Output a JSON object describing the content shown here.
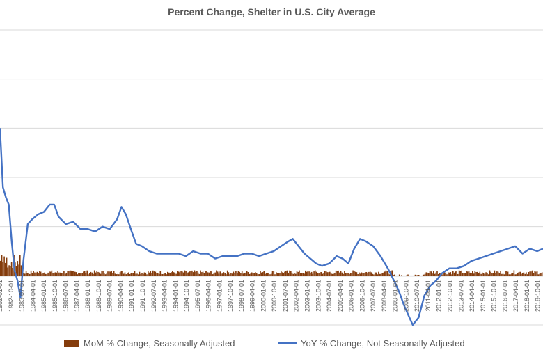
{
  "chart_data": {
    "type": "bar+line",
    "title": "Percent Change,  Shelter in U.S. City Average",
    "xlabel": "",
    "ylabel": "",
    "grid": true,
    "legend_position": "bottom",
    "x_tick_labels": [
      "1982-01-01",
      "1982-10-01",
      "1983-07-01",
      "1984-04-01",
      "1985-01-01",
      "1985-10-01",
      "1986-07-01",
      "1987-04-01",
      "1988-01-01",
      "1988-10-01",
      "1989-07-01",
      "1990-04-01",
      "1991-01-01",
      "1991-10-01",
      "1992-07-01",
      "1993-04-01",
      "1994-01-01",
      "1994-10-01",
      "1995-07-01",
      "1996-04-01",
      "1997-01-01",
      "1997-10-01",
      "1998-07-01",
      "1999-04-01",
      "2000-01-01",
      "2000-10-01",
      "2001-07-01",
      "2002-04-01",
      "2003-01-01",
      "2003-10-01",
      "2004-07-01",
      "2005-04-01",
      "2006-01-01",
      "2006-10-01",
      "2007-07-01",
      "2008-04-01",
      "2009-01-01",
      "2009-10-01",
      "2010-07-01",
      "2011-04-01",
      "2012-01-01",
      "2012-10-01",
      "2013-07-01",
      "2014-04-01",
      "2015-01-01",
      "2015-10-01",
      "2016-07-01",
      "2017-04-01",
      "2018-01-01",
      "2018-10-01"
    ],
    "series": [
      {
        "name": "YoY % Change, Not Seasonally Adjusted",
        "type": "line",
        "color": "#4472c4",
        "x": [
          1982.0,
          1982.2,
          1982.4,
          1982.6,
          1982.8,
          1983.0,
          1983.2,
          1983.4,
          1983.6,
          1983.9,
          1984.2,
          1984.6,
          1985.0,
          1985.4,
          1985.7,
          1986.0,
          1986.5,
          1987.0,
          1987.5,
          1988.0,
          1988.5,
          1989.0,
          1989.5,
          1990.0,
          1990.3,
          1990.6,
          1991.0,
          1991.3,
          1991.7,
          1992.2,
          1992.7,
          1993.2,
          1993.7,
          1994.2,
          1994.7,
          1995.2,
          1995.7,
          1996.2,
          1996.7,
          1997.2,
          1997.7,
          1998.2,
          1998.7,
          1999.2,
          1999.7,
          2000.2,
          2000.7,
          2001.2,
          2001.7,
          2002.0,
          2002.4,
          2002.8,
          2003.2,
          2003.6,
          2004.0,
          2004.5,
          2005.0,
          2005.4,
          2005.8,
          2006.2,
          2006.6,
          2007.0,
          2007.5,
          2008.0,
          2008.5,
          2009.0,
          2009.3,
          2009.6,
          2009.9,
          2010.2,
          2010.6,
          2011.0,
          2011.4,
          2011.8,
          2012.2,
          2012.7,
          2013.2,
          2013.7,
          2014.2,
          2014.7,
          2015.2,
          2015.7,
          2016.2,
          2016.7,
          2017.2,
          2017.7,
          2018.2,
          2018.7,
          2019.1
        ],
        "values": [
          12.0,
          9.6,
          9.2,
          8.9,
          7.4,
          6.2,
          5.8,
          5.1,
          6.6,
          8.1,
          8.3,
          8.5,
          8.6,
          8.9,
          8.9,
          8.4,
          8.1,
          8.2,
          7.9,
          7.9,
          7.8,
          8.0,
          7.9,
          8.3,
          8.8,
          8.5,
          7.8,
          7.3,
          7.2,
          7.0,
          6.9,
          6.9,
          6.9,
          6.9,
          6.8,
          7.0,
          6.9,
          6.9,
          6.7,
          6.8,
          6.8,
          6.8,
          6.9,
          6.9,
          6.8,
          6.9,
          7.0,
          7.2,
          7.4,
          7.5,
          7.2,
          6.9,
          6.7,
          6.5,
          6.4,
          6.5,
          6.8,
          6.7,
          6.5,
          7.1,
          7.5,
          7.4,
          7.2,
          6.8,
          6.3,
          5.7,
          5.3,
          4.8,
          4.4,
          4.0,
          4.3,
          5.2,
          5.6,
          5.8,
          6.1,
          6.3,
          6.3,
          6.4,
          6.6,
          6.7,
          6.8,
          6.9,
          7.0,
          7.1,
          7.2,
          6.9,
          7.1,
          7.0,
          7.1
        ]
      },
      {
        "name": "MoM % Change, Seasonally Adjusted",
        "type": "bar",
        "color": "#843c0c",
        "x_range": [
          1982.0,
          2019.1
        ],
        "typical_value": 0.3,
        "peak_values": [
          {
            "x": 1982.1,
            "value": 1.4
          },
          {
            "x": 1983.0,
            "value": 0.9
          }
        ]
      }
    ],
    "ylim": [
      4,
      16
    ],
    "xlim": [
      1982.0,
      2019.1
    ]
  },
  "legend": {
    "mom_label": "MoM % Change, Seasonally Adjusted",
    "yoy_label": "YoY % Change, Not Seasonally Adjusted"
  }
}
